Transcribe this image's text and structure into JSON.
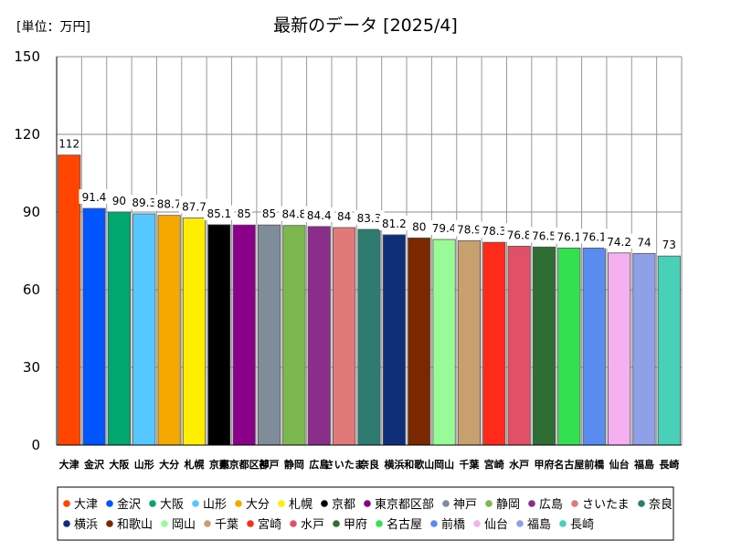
{
  "chart_data": {
    "type": "bar",
    "title": "最新のデータ [2025/4]",
    "unit_label": "[単位：万円]",
    "xlabel": "",
    "ylabel": "",
    "ylim": [
      0,
      150
    ],
    "yticks": [
      0,
      30,
      60,
      90,
      120,
      150
    ],
    "grid": true,
    "legend_position": "bottom",
    "categories": [
      "大津",
      "金沢",
      "大阪",
      "山形",
      "大分",
      "札幌",
      "京都",
      "東京都区部",
      "神戸",
      "静岡",
      "広島",
      "さいたま",
      "奈良",
      "横浜",
      "和歌山",
      "岡山",
      "千葉",
      "宮崎",
      "水戸",
      "甲府",
      "名古屋",
      "前橋",
      "仙台",
      "福島",
      "長崎"
    ],
    "values": [
      112,
      91.4,
      90,
      89.3,
      88.7,
      87.7,
      85.1,
      85,
      85,
      84.8,
      84.4,
      84,
      83.3,
      81.2,
      80,
      79.4,
      78.9,
      78.3,
      76.8,
      76.5,
      76.1,
      76.1,
      74.2,
      74,
      73
    ],
    "value_labels": [
      "112",
      "91.4",
      "90",
      "89.3",
      "88.7",
      "87.7",
      "85.1",
      "85",
      "85",
      "84.8",
      "84.4",
      "84",
      "83.3",
      "81.2",
      "80",
      "79.4",
      "78.9",
      "78.3",
      "76.8",
      "76.5",
      "76.1",
      "76.1",
      "74.2",
      "74",
      "73"
    ],
    "colors": [
      "#ff4500",
      "#0055ff",
      "#00a870",
      "#55c8ff",
      "#f5a800",
      "#ffee00",
      "#000000",
      "#8b008b",
      "#7f8c9a",
      "#7db84e",
      "#8b2e8b",
      "#e07a78",
      "#2e7b70",
      "#0e2e7a",
      "#7a2800",
      "#98fb98",
      "#c8a070",
      "#ff2a1a",
      "#e05066",
      "#2e6e34",
      "#32e050",
      "#5a8cf0",
      "#f4b0f0",
      "#90a0e8",
      "#48d0b8"
    ]
  }
}
